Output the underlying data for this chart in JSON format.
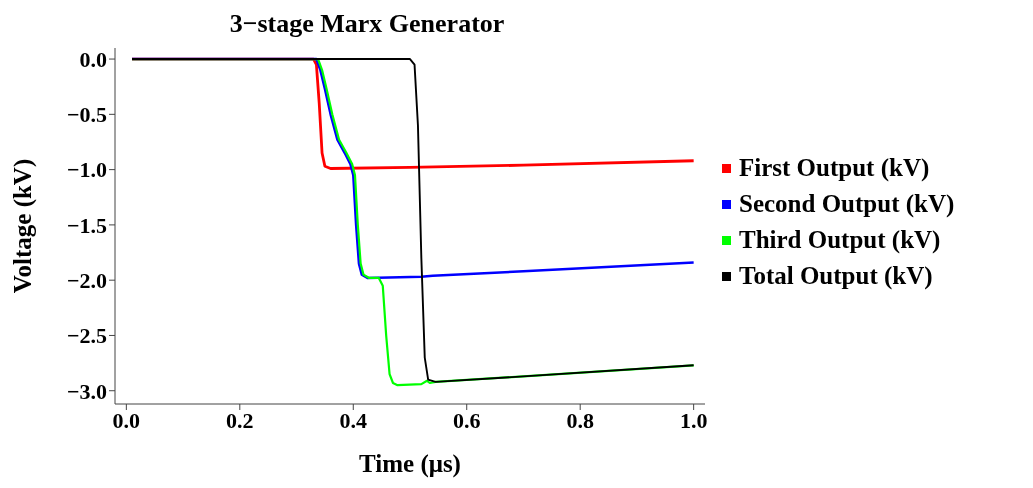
{
  "chart_data": {
    "type": "line",
    "title": "3−stage Marx Generator",
    "xlabel": "Time (μs)",
    "ylabel": "Voltage (kV)",
    "xlim": [
      -0.02,
      1.02
    ],
    "ylim": [
      -3.12,
      0.1
    ],
    "xticks": [
      {
        "value": 0,
        "label": "0.0"
      },
      {
        "value": 0.2,
        "label": "0.2"
      },
      {
        "value": 0.4,
        "label": "0.4"
      },
      {
        "value": 0.6,
        "label": "0.6"
      },
      {
        "value": 0.8,
        "label": "0.8"
      },
      {
        "value": 1,
        "label": "1.0"
      }
    ],
    "yticks": [
      {
        "value": 0,
        "label": "0.0"
      },
      {
        "value": -0.5,
        "label": "−0.5"
      },
      {
        "value": -1,
        "label": "−1.0"
      },
      {
        "value": -1.5,
        "label": "−1.5"
      },
      {
        "value": -2,
        "label": "−2.0"
      },
      {
        "value": -2.5,
        "label": "−2.5"
      },
      {
        "value": -3,
        "label": "−3.0"
      }
    ],
    "legend": "right",
    "series": [
      {
        "name": "First Output (kV)",
        "color": "#ff0000",
        "x": [
          0.01,
          0.33,
          0.335,
          0.34,
          0.345,
          0.35,
          0.36,
          0.5,
          0.7,
          1.0
        ],
        "values": [
          0,
          0,
          -0.05,
          -0.4,
          -0.85,
          -0.97,
          -0.99,
          -0.98,
          -0.96,
          -0.92
        ]
      },
      {
        "name": "Second Output (kV)",
        "color": "#0000ff",
        "x": [
          0.01,
          0.335,
          0.342,
          0.35,
          0.36,
          0.372,
          0.385,
          0.395,
          0.4,
          0.405,
          0.41,
          0.415,
          0.425,
          0.52,
          0.54,
          0.7,
          1.0
        ],
        "values": [
          0,
          0,
          -0.1,
          -0.27,
          -0.5,
          -0.73,
          -0.85,
          -0.95,
          -1.05,
          -1.5,
          -1.85,
          -1.95,
          -1.98,
          -1.97,
          -1.96,
          -1.92,
          -1.84
        ]
      },
      {
        "name": "Third Output (kV)",
        "color": "#00ff00",
        "x": [
          0.01,
          0.338,
          0.345,
          0.353,
          0.363,
          0.375,
          0.388,
          0.398,
          0.403,
          0.408,
          0.413,
          0.418,
          0.428,
          0.445,
          0.452,
          0.458,
          0.464,
          0.47,
          0.478,
          0.52,
          0.53,
          0.535,
          0.545,
          0.7,
          1.0
        ],
        "values": [
          0,
          0,
          -0.1,
          -0.27,
          -0.5,
          -0.73,
          -0.85,
          -0.95,
          -1.05,
          -1.5,
          -1.85,
          -1.95,
          -1.98,
          -1.98,
          -2.05,
          -2.5,
          -2.85,
          -2.93,
          -2.95,
          -2.94,
          -2.91,
          -2.93,
          -2.92,
          -2.87,
          -2.77
        ]
      },
      {
        "name": "Total Output (kV)",
        "color": "#000000",
        "x": [
          0.01,
          0.5,
          0.508,
          0.514,
          0.52,
          0.526,
          0.532,
          0.545,
          0.7,
          1.0
        ],
        "values": [
          0,
          0,
          -0.05,
          -0.6,
          -1.8,
          -2.7,
          -2.9,
          -2.92,
          -2.87,
          -2.77
        ]
      }
    ]
  }
}
